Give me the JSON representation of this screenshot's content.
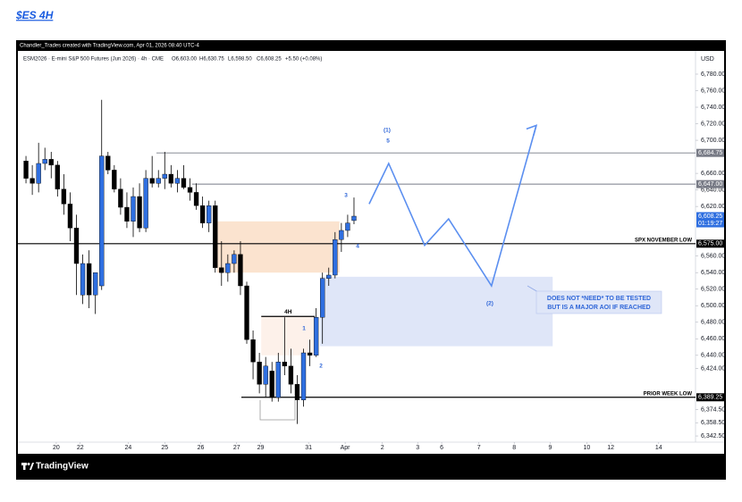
{
  "title": "$ES 4H",
  "chart_data": {
    "type": "candlestick",
    "credit": "Chandler_Trades created with TradingView.com, Apr 01, 2026 08:40 UTC-4",
    "symbol": "ESM2026 · E-mini S&P 500 Futures (Jun 2026) · 4h · CME",
    "ohlc_text": [
      "O6,603.00",
      "H6,630.75",
      "L6,598.50",
      "C6,608.25",
      "+5.50 (+0.08%)"
    ],
    "currency": "USD",
    "footer": "TradingView",
    "up_color": "#2f6fe0",
    "down_color": "#000000",
    "xlim": [
      0,
      107
    ],
    "ylim": [
      6335,
      6807
    ],
    "xticks": [
      {
        "value": 5.8,
        "label": "20"
      },
      {
        "value": 9.6,
        "label": "22"
      },
      {
        "value": 17.2,
        "label": "24"
      },
      {
        "value": 23,
        "label": "25"
      },
      {
        "value": 28.7,
        "label": "26"
      },
      {
        "value": 34.4,
        "label": "27"
      },
      {
        "value": 38.2,
        "label": "29"
      },
      {
        "value": 45.8,
        "label": "31"
      },
      {
        "value": 51.6,
        "label": "Apr"
      },
      {
        "value": 57.5,
        "label": "2"
      },
      {
        "value": 63.1,
        "label": "3"
      },
      {
        "value": 66.9,
        "label": "6"
      },
      {
        "value": 72.8,
        "label": "7"
      },
      {
        "value": 78.4,
        "label": "8"
      },
      {
        "value": 84.1,
        "label": "9"
      },
      {
        "value": 89.9,
        "label": "10"
      },
      {
        "value": 93.7,
        "label": "12"
      },
      {
        "value": 101.3,
        "label": "14"
      }
    ],
    "yticks": [
      {
        "value": 6780,
        "label": "6,780.00"
      },
      {
        "value": 6760,
        "label": "6,760.00"
      },
      {
        "value": 6740,
        "label": "6,740.00"
      },
      {
        "value": 6720,
        "label": "6,720.00"
      },
      {
        "value": 6700,
        "label": "6,700.00"
      },
      {
        "value": 6660,
        "label": "6,660.00"
      },
      {
        "value": 6640,
        "label": "6,640.00"
      },
      {
        "value": 6620,
        "label": "6,620.00"
      },
      {
        "value": 6560,
        "label": "6,560.00"
      },
      {
        "value": 6540,
        "label": "6,540.00"
      },
      {
        "value": 6520,
        "label": "6,520.00"
      },
      {
        "value": 6500,
        "label": "6,500.00"
      },
      {
        "value": 6480,
        "label": "6,480.00"
      },
      {
        "value": 6460,
        "label": "6,460.00"
      },
      {
        "value": 6440,
        "label": "6,440.00"
      },
      {
        "value": 6424,
        "label": "6,424.00"
      },
      {
        "value": 6374.5,
        "label": "6,374.50"
      },
      {
        "value": 6358.5,
        "label": "6,358.50"
      },
      {
        "value": 6342.5,
        "label": "6,342.50"
      }
    ],
    "candles": {
      "x": [
        1,
        2,
        3,
        4,
        5,
        6,
        7,
        8,
        9,
        10,
        11,
        12,
        13,
        14,
        15,
        16,
        17,
        18,
        19,
        20,
        21,
        22,
        23,
        24,
        25,
        26,
        27,
        28,
        29,
        30,
        31,
        32,
        33,
        34,
        35,
        36,
        37,
        38,
        39,
        40,
        41,
        42,
        43,
        44,
        45,
        46,
        47,
        48,
        49,
        50,
        51,
        52,
        53
      ],
      "open": [
        6675,
        6654,
        6648,
        6672,
        6677,
        6670,
        6641,
        6623,
        6594,
        6513,
        6551,
        6513,
        6524,
        6681,
        6664,
        6641,
        6619,
        6602,
        6632,
        6594,
        6654,
        6648,
        6654,
        6659,
        6648,
        6654,
        6643,
        6637,
        6621,
        6600,
        6621,
        6546,
        6540,
        6551,
        6562,
        6524,
        6459,
        6432,
        6405,
        6421,
        6389,
        6432,
        6427,
        6405,
        6386,
        6443,
        6440,
        6486,
        6533,
        6537,
        6580,
        6591,
        6603
      ],
      "high": [
        6681,
        6670,
        6697,
        6691,
        6686,
        6675,
        6659,
        6637,
        6610,
        6562,
        6567,
        6529,
        6749,
        6686,
        6670,
        6654,
        6637,
        6643,
        6648,
        6664,
        6681,
        6664,
        6686,
        6670,
        6664,
        6670,
        6654,
        6648,
        6632,
        6627,
        6627,
        6578,
        6562,
        6567,
        6578,
        6529,
        6470,
        6443,
        6438,
        6432,
        6443,
        6486,
        6448,
        6416,
        6448,
        6459,
        6497,
        6540,
        6546,
        6589,
        6600,
        6610,
        6630.75
      ],
      "low": [
        6648,
        6634,
        6637,
        6664,
        6654,
        6632,
        6610,
        6578,
        6513,
        6502,
        6497,
        6490,
        6519,
        6659,
        6637,
        6610,
        6594,
        6583,
        6589,
        6589,
        6643,
        6643,
        6641,
        6643,
        6637,
        6641,
        6627,
        6616,
        6594,
        6589,
        6540,
        6524,
        6529,
        6540,
        6513,
        6454,
        6411,
        6394,
        6389,
        6384,
        6384,
        6416,
        6394,
        6357,
        6378,
        6427,
        6438,
        6454,
        6524,
        6533,
        6565,
        6583,
        6598.5
      ],
      "close": [
        6654,
        6648,
        6672,
        6677,
        6670,
        6641,
        6623,
        6594,
        6551,
        6551,
        6513,
        6540,
        6681,
        6664,
        6641,
        6619,
        6602,
        6632,
        6594,
        6654,
        6648,
        6654,
        6659,
        6648,
        6654,
        6643,
        6637,
        6621,
        6600,
        6621,
        6546,
        6540,
        6551,
        6562,
        6524,
        6459,
        6432,
        6405,
        6427,
        6389,
        6432,
        6427,
        6405,
        6386,
        6443,
        6440,
        6486,
        6533,
        6537,
        6580,
        6591,
        6600,
        6608.25
      ]
    },
    "current": {
      "value": 6608.25,
      "label": "6,608.25",
      "countdown": "01:19:27",
      "color": "#2f6fe0"
    },
    "levels": [
      {
        "value": 6684.75,
        "label": "6,684.75",
        "color": "#787b86"
      },
      {
        "value": 6647,
        "label": "6,647.00",
        "color": "#787b86"
      },
      {
        "value": 6575,
        "label": "6,575.00",
        "color": "#000000",
        "name": "SPX NOVEMBER LOW"
      },
      {
        "value": 6389.25,
        "label": "6,389.25",
        "color": "#000000",
        "name": "PRIOR WEEK LOW"
      }
    ],
    "zones": [
      {
        "x": [
          31.3,
          50.7
        ],
        "y": [
          6540,
          6602
        ],
        "color": "#fbe3cf"
      },
      {
        "x": [
          47.6,
          84.5
        ],
        "y": [
          6451,
          6535
        ],
        "color": "#dfe6f8"
      },
      {
        "x": [
          38.3,
          46.8
        ],
        "y": [
          6440,
          6487
        ],
        "color": "#fdf1ea",
        "label": "4H"
      }
    ],
    "projection": {
      "x": [
        55.4,
        58.5,
        64.2,
        68,
        74.8,
        81.9
      ],
      "y": [
        6623,
        6672,
        6573,
        6605,
        6524,
        6718
      ],
      "color": "#5b8ff0"
    },
    "annotations": [
      "(1)",
      "5",
      "3",
      "4",
      "1",
      "2",
      "(2)"
    ],
    "callout": [
      "DOES NOT *NEED* TO BE TESTED",
      "BUT IS A MAJOR AOI IF REACHED"
    ]
  }
}
